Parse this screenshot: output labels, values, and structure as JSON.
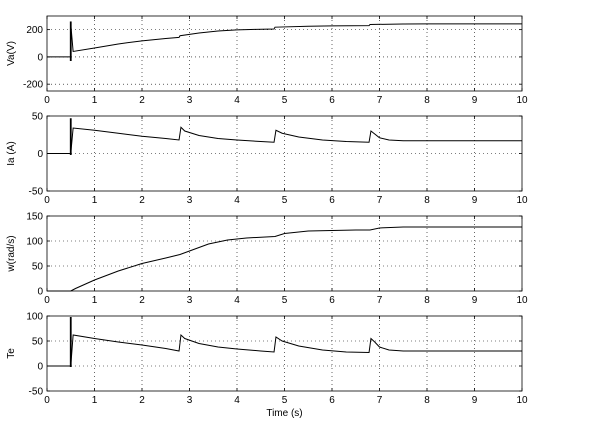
{
  "chart_data": [
    {
      "type": "line",
      "ylabel": "Va(V)",
      "xlabel": "",
      "xlim": [
        0,
        10
      ],
      "ylim": [
        -250,
        300
      ],
      "xticks": [
        0,
        1,
        2,
        3,
        4,
        5,
        6,
        7,
        8,
        9,
        10
      ],
      "yticks": [
        -200,
        0,
        200
      ],
      "grid": true,
      "series": [
        {
          "x": [
            0,
            0.5,
            0.5,
            0.55,
            1.0,
            1.5,
            2.0,
            2.5,
            2.78,
            2.8,
            3.2,
            3.6,
            4.0,
            4.4,
            4.78,
            4.8,
            5.5,
            6.0,
            6.78,
            6.8,
            7.5,
            8.0,
            9.0,
            10.0
          ],
          "y": [
            0,
            0,
            240,
            40,
            65,
            95,
            118,
            135,
            143,
            155,
            175,
            190,
            198,
            202,
            205,
            218,
            225,
            228,
            229,
            238,
            241,
            242,
            242,
            242
          ]
        }
      ],
      "spikes": [
        {
          "x": 0.5,
          "ymin": -30,
          "ymax": 260
        }
      ]
    },
    {
      "type": "line",
      "ylabel": "Ia (A)",
      "xlabel": "",
      "xlim": [
        0,
        10
      ],
      "ylim": [
        -50,
        50
      ],
      "xticks": [
        0,
        1,
        2,
        3,
        4,
        5,
        6,
        7,
        8,
        9,
        10
      ],
      "yticks": [
        -50,
        0,
        50
      ],
      "grid": true,
      "series": [
        {
          "x": [
            0,
            0.5,
            0.55,
            1.0,
            1.5,
            2.0,
            2.5,
            2.78,
            2.82,
            2.9,
            3.2,
            3.6,
            4.0,
            4.5,
            4.78,
            4.82,
            4.95,
            5.3,
            5.8,
            6.3,
            6.78,
            6.82,
            6.9,
            7.0,
            7.2,
            7.5,
            8.0,
            9.0,
            10.0
          ],
          "y": [
            0,
            0,
            34,
            31,
            27,
            23,
            20,
            18,
            35,
            30,
            24,
            20,
            18,
            16,
            15,
            31,
            27,
            22,
            18,
            16,
            15,
            30,
            26,
            21,
            18,
            17,
            17,
            17,
            17
          ]
        }
      ],
      "spikes": [
        {
          "x": 0.5,
          "ymin": -2,
          "ymax": 47
        }
      ]
    },
    {
      "type": "line",
      "ylabel": "w(rad/s)",
      "xlabel": "",
      "xlim": [
        0,
        10
      ],
      "ylim": [
        0,
        150
      ],
      "xticks": [
        0,
        1,
        2,
        3,
        4,
        5,
        6,
        7,
        8,
        9,
        10
      ],
      "yticks": [
        0,
        50,
        100,
        150
      ],
      "grid": true,
      "series": [
        {
          "x": [
            0,
            0.5,
            0.6,
            1.0,
            1.5,
            2.0,
            2.5,
            2.8,
            3.0,
            3.4,
            3.8,
            4.2,
            4.6,
            4.8,
            5.0,
            5.5,
            6.0,
            6.5,
            6.8,
            7.0,
            7.5,
            8.0,
            9.0,
            10.0
          ],
          "y": [
            0,
            0,
            5,
            22,
            40,
            55,
            66,
            73,
            80,
            94,
            102,
            106,
            108,
            109,
            115,
            120,
            121,
            122,
            122,
            126,
            128,
            128,
            128,
            128
          ]
        }
      ],
      "spikes": []
    },
    {
      "type": "line",
      "ylabel": "Te",
      "xlabel": "Time (s)",
      "xlim": [
        0,
        10
      ],
      "ylim": [
        -50,
        100
      ],
      "xticks": [
        0,
        1,
        2,
        3,
        4,
        5,
        6,
        7,
        8,
        9,
        10
      ],
      "yticks": [
        -50,
        0,
        50,
        100
      ],
      "grid": true,
      "series": [
        {
          "x": [
            0,
            0.5,
            0.55,
            1.0,
            1.5,
            2.0,
            2.5,
            2.78,
            2.82,
            2.9,
            3.2,
            3.6,
            4.0,
            4.5,
            4.78,
            4.82,
            4.95,
            5.3,
            5.8,
            6.3,
            6.78,
            6.82,
            6.9,
            7.0,
            7.2,
            7.5,
            8.0,
            9.0,
            10.0
          ],
          "y": [
            0,
            0,
            62,
            55,
            48,
            42,
            35,
            30,
            62,
            55,
            45,
            38,
            34,
            30,
            28,
            58,
            50,
            40,
            32,
            28,
            27,
            55,
            48,
            38,
            32,
            30,
            30,
            30,
            30
          ]
        }
      ],
      "spikes": [
        {
          "x": 0.5,
          "ymin": -2,
          "ymax": 98
        }
      ]
    }
  ]
}
